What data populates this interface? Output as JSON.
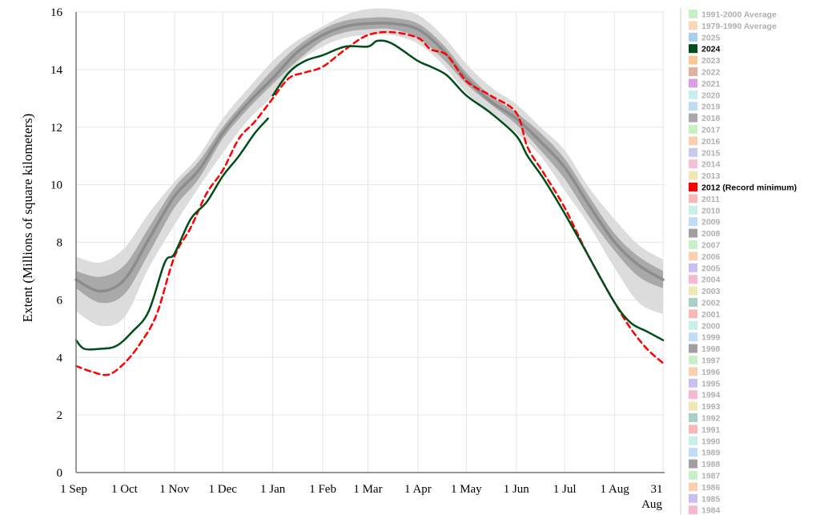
{
  "chart_data": {
    "type": "line",
    "ylabel": "Extent (Millions of square kilometers)",
    "ylim": [
      0,
      16
    ],
    "yticks": [
      "0",
      "2",
      "4",
      "6",
      "8",
      "10",
      "12",
      "14",
      "16"
    ],
    "xlim": [
      0,
      365
    ],
    "xticks": [
      {
        "label": "1 Sep",
        "day": 0
      },
      {
        "label": "1 Oct",
        "day": 30
      },
      {
        "label": "1 Nov",
        "day": 61
      },
      {
        "label": "1 Dec",
        "day": 91
      },
      {
        "label": "1 Jan",
        "day": 122
      },
      {
        "label": "1 Feb",
        "day": 153
      },
      {
        "label": "1 Mar",
        "day": 181
      },
      {
        "label": "1 Apr",
        "day": 212
      },
      {
        "label": "1 May",
        "day": 242
      },
      {
        "label": "1 Jun",
        "day": 273
      },
      {
        "label": "1 Jul",
        "day": 303
      },
      {
        "label": "1 Aug",
        "day": 334
      },
      {
        "label": "31",
        "day": 364,
        "sublabel": "Aug"
      }
    ],
    "grid": true,
    "legend_position": "right",
    "bands": {
      "outer": {
        "color": "#dcdcdc",
        "x": [
          0,
          15,
          30,
          45,
          61,
          76,
          91,
          106,
          122,
          137,
          153,
          167,
          181,
          196,
          212,
          227,
          242,
          257,
          273,
          288,
          303,
          318,
          334,
          349,
          364
        ],
        "upper": [
          7.5,
          7.3,
          7.8,
          9.0,
          10.1,
          11.0,
          12.3,
          13.3,
          14.3,
          15.0,
          15.5,
          15.9,
          16.1,
          16.1,
          15.9,
          15.2,
          14.2,
          13.4,
          12.8,
          12.0,
          11.2,
          9.9,
          8.8,
          7.9,
          7.4
        ],
        "lower": [
          5.6,
          5.1,
          5.4,
          7.1,
          8.6,
          9.9,
          11.1,
          12.2,
          13.1,
          14.2,
          14.8,
          15.1,
          15.2,
          15.2,
          14.9,
          14.2,
          13.2,
          12.5,
          11.8,
          11.0,
          9.8,
          8.6,
          7.1,
          5.9,
          5.5
        ]
      },
      "inner": {
        "color": "#a9a9a9",
        "x": [
          0,
          15,
          30,
          45,
          61,
          76,
          91,
          106,
          122,
          137,
          153,
          167,
          181,
          196,
          212,
          227,
          242,
          257,
          273,
          288,
          303,
          318,
          334,
          349,
          364
        ],
        "upper": [
          7.0,
          6.8,
          7.2,
          8.5,
          9.9,
          10.8,
          12.0,
          13.0,
          14.0,
          14.8,
          15.4,
          15.7,
          15.8,
          15.8,
          15.6,
          14.9,
          13.9,
          13.1,
          12.5,
          11.8,
          10.9,
          9.6,
          8.3,
          7.5,
          7.0
        ],
        "lower": [
          6.4,
          5.9,
          6.2,
          7.6,
          9.2,
          10.2,
          11.6,
          12.6,
          13.5,
          14.3,
          15.0,
          15.3,
          15.4,
          15.4,
          15.1,
          14.4,
          13.5,
          12.8,
          12.1,
          11.2,
          10.2,
          8.9,
          7.7,
          6.8,
          6.4
        ]
      }
    },
    "series": [
      {
        "name": "1991-2000 Average",
        "color": "#8c8c8c",
        "dash": false,
        "width": 3.5,
        "x": [
          0,
          15,
          30,
          45,
          61,
          76,
          91,
          106,
          122,
          137,
          153,
          167,
          181,
          196,
          212,
          227,
          242,
          257,
          273,
          288,
          303,
          318,
          334,
          349,
          364
        ],
        "y": [
          6.7,
          6.3,
          6.7,
          8.1,
          9.6,
          10.5,
          11.8,
          12.8,
          13.7,
          14.6,
          15.2,
          15.5,
          15.6,
          15.6,
          15.4,
          14.7,
          13.7,
          12.9,
          12.3,
          11.5,
          10.6,
          9.3,
          8.0,
          7.2,
          6.7
        ]
      },
      {
        "name": "2012 (Record minimum)",
        "color": "#ff0000",
        "dash": true,
        "width": 2.5,
        "x": [
          0,
          10,
          20,
          30,
          40,
          50,
          61,
          71,
          81,
          91,
          101,
          111,
          122,
          132,
          142,
          153,
          167,
          181,
          196,
          212,
          220,
          230,
          242,
          257,
          273,
          280,
          290,
          303,
          318,
          334,
          344,
          354,
          364
        ],
        "y": [
          3.7,
          3.5,
          3.4,
          3.8,
          4.5,
          5.5,
          7.5,
          8.5,
          9.7,
          10.5,
          11.6,
          12.2,
          13.0,
          13.7,
          13.9,
          14.1,
          14.7,
          15.2,
          15.3,
          15.1,
          14.7,
          14.5,
          13.6,
          13.1,
          12.5,
          11.3,
          10.4,
          9.2,
          7.5,
          5.9,
          5.0,
          4.3,
          3.8
        ]
      },
      {
        "name": "2024",
        "color": "#004d1a",
        "dash": false,
        "width": 2.5,
        "segments": [
          {
            "x": [
              0,
              5,
              15,
              25,
              35,
              45,
              55,
              61,
              71,
              81,
              91,
              101,
              111,
              119
            ],
            "y": [
              4.6,
              4.3,
              4.3,
              4.4,
              4.9,
              5.6,
              7.3,
              7.6,
              8.8,
              9.4,
              10.3,
              11.0,
              11.8,
              12.3
            ]
          },
          {
            "x": [
              122,
              132,
              142,
              153,
              167,
              181,
              187,
              196,
              212,
              220,
              230,
              242,
              257,
              273,
              280,
              290,
              303,
              318,
              334,
              344,
              354,
              364
            ],
            "y": [
              13.1,
              13.9,
              14.3,
              14.5,
              14.8,
              14.8,
              15.0,
              14.9,
              14.3,
              14.1,
              13.8,
              13.1,
              12.5,
              11.7,
              11.0,
              10.2,
              9.0,
              7.5,
              5.9,
              5.2,
              4.9,
              4.6
            ]
          }
        ]
      }
    ]
  },
  "legend": {
    "items": [
      {
        "label": "1991-2000 Average",
        "color": "#c8f0c8",
        "text_color": "#b0b0b0"
      },
      {
        "label": "1979-1990 Average",
        "color": "#f8d8b8",
        "text_color": "#b0b0b0"
      },
      {
        "label": "2025",
        "color": "#a8cef0",
        "text_color": "#b0b0b0"
      },
      {
        "label": "2024",
        "color": "#004d1a",
        "text_color": "#000000"
      },
      {
        "label": "2023",
        "color": "#f8c898",
        "text_color": "#b0b0b0"
      },
      {
        "label": "2022",
        "color": "#e0b0a0",
        "text_color": "#b0b0b0"
      },
      {
        "label": "2021",
        "color": "#d8a0e0",
        "text_color": "#b0b0b0"
      },
      {
        "label": "2020",
        "color": "#c8eef0",
        "text_color": "#b0b0b0"
      },
      {
        "label": "2019",
        "color": "#c0dcf0",
        "text_color": "#b0b0b0"
      },
      {
        "label": "2018",
        "color": "#a8a8a8",
        "text_color": "#b0b0b0"
      },
      {
        "label": "2017",
        "color": "#c8f0c0",
        "text_color": "#b0b0b0"
      },
      {
        "label": "2016",
        "color": "#f8d0b0",
        "text_color": "#b0b0b0"
      },
      {
        "label": "2015",
        "color": "#c8c8f0",
        "text_color": "#b0b0b0"
      },
      {
        "label": "2014",
        "color": "#f8c0d8",
        "text_color": "#b0b0b0"
      },
      {
        "label": "2013",
        "color": "#f0e8b0",
        "text_color": "#b0b0b0"
      },
      {
        "label": "2012 (Record minimum)",
        "color": "#ff0000",
        "text_color": "#000000"
      },
      {
        "label": "2011",
        "color": "#f8b8b8",
        "text_color": "#b0b0b0"
      },
      {
        "label": "2010",
        "color": "#c8f0e8",
        "text_color": "#b0b0b0"
      },
      {
        "label": "2009",
        "color": "#c0dcf8",
        "text_color": "#b0b0b0"
      },
      {
        "label": "2008",
        "color": "#a0a0a0",
        "text_color": "#b0b0b0"
      },
      {
        "label": "2007",
        "color": "#c8f0c8",
        "text_color": "#b0b0b0"
      },
      {
        "label": "2006",
        "color": "#f8d0b0",
        "text_color": "#b0b0b0"
      },
      {
        "label": "2005",
        "color": "#c8c0f0",
        "text_color": "#b0b0b0"
      },
      {
        "label": "2004",
        "color": "#f8b8d0",
        "text_color": "#b0b0b0"
      },
      {
        "label": "2003",
        "color": "#f0e8b0",
        "text_color": "#b0b0b0"
      },
      {
        "label": "2002",
        "color": "#a8d0c8",
        "text_color": "#b0b0b0"
      },
      {
        "label": "2001",
        "color": "#f8b8b8",
        "text_color": "#b0b0b0"
      },
      {
        "label": "2000",
        "color": "#c8f0e8",
        "text_color": "#b0b0b0"
      },
      {
        "label": "1999",
        "color": "#c0dcf8",
        "text_color": "#b0b0b0"
      },
      {
        "label": "1998",
        "color": "#a0a0a0",
        "text_color": "#b0b0b0"
      },
      {
        "label": "1997",
        "color": "#c8f0c8",
        "text_color": "#b0b0b0"
      },
      {
        "label": "1996",
        "color": "#f8d0b0",
        "text_color": "#b0b0b0"
      },
      {
        "label": "1995",
        "color": "#c8c0f0",
        "text_color": "#b0b0b0"
      },
      {
        "label": "1994",
        "color": "#f8b8d0",
        "text_color": "#b0b0b0"
      },
      {
        "label": "1993",
        "color": "#f0e8b0",
        "text_color": "#b0b0b0"
      },
      {
        "label": "1992",
        "color": "#a8d0c8",
        "text_color": "#b0b0b0"
      },
      {
        "label": "1991",
        "color": "#f8b8b8",
        "text_color": "#b0b0b0"
      },
      {
        "label": "1990",
        "color": "#c8f0e8",
        "text_color": "#b0b0b0"
      },
      {
        "label": "1989",
        "color": "#c0dcf8",
        "text_color": "#b0b0b0"
      },
      {
        "label": "1988",
        "color": "#a0a0a0",
        "text_color": "#b0b0b0"
      },
      {
        "label": "1987",
        "color": "#c8f0c8",
        "text_color": "#b0b0b0"
      },
      {
        "label": "1986",
        "color": "#f8d0b0",
        "text_color": "#b0b0b0"
      },
      {
        "label": "1985",
        "color": "#c8c0f0",
        "text_color": "#b0b0b0"
      },
      {
        "label": "1984",
        "color": "#f8b8d0",
        "text_color": "#b0b0b0"
      }
    ]
  }
}
